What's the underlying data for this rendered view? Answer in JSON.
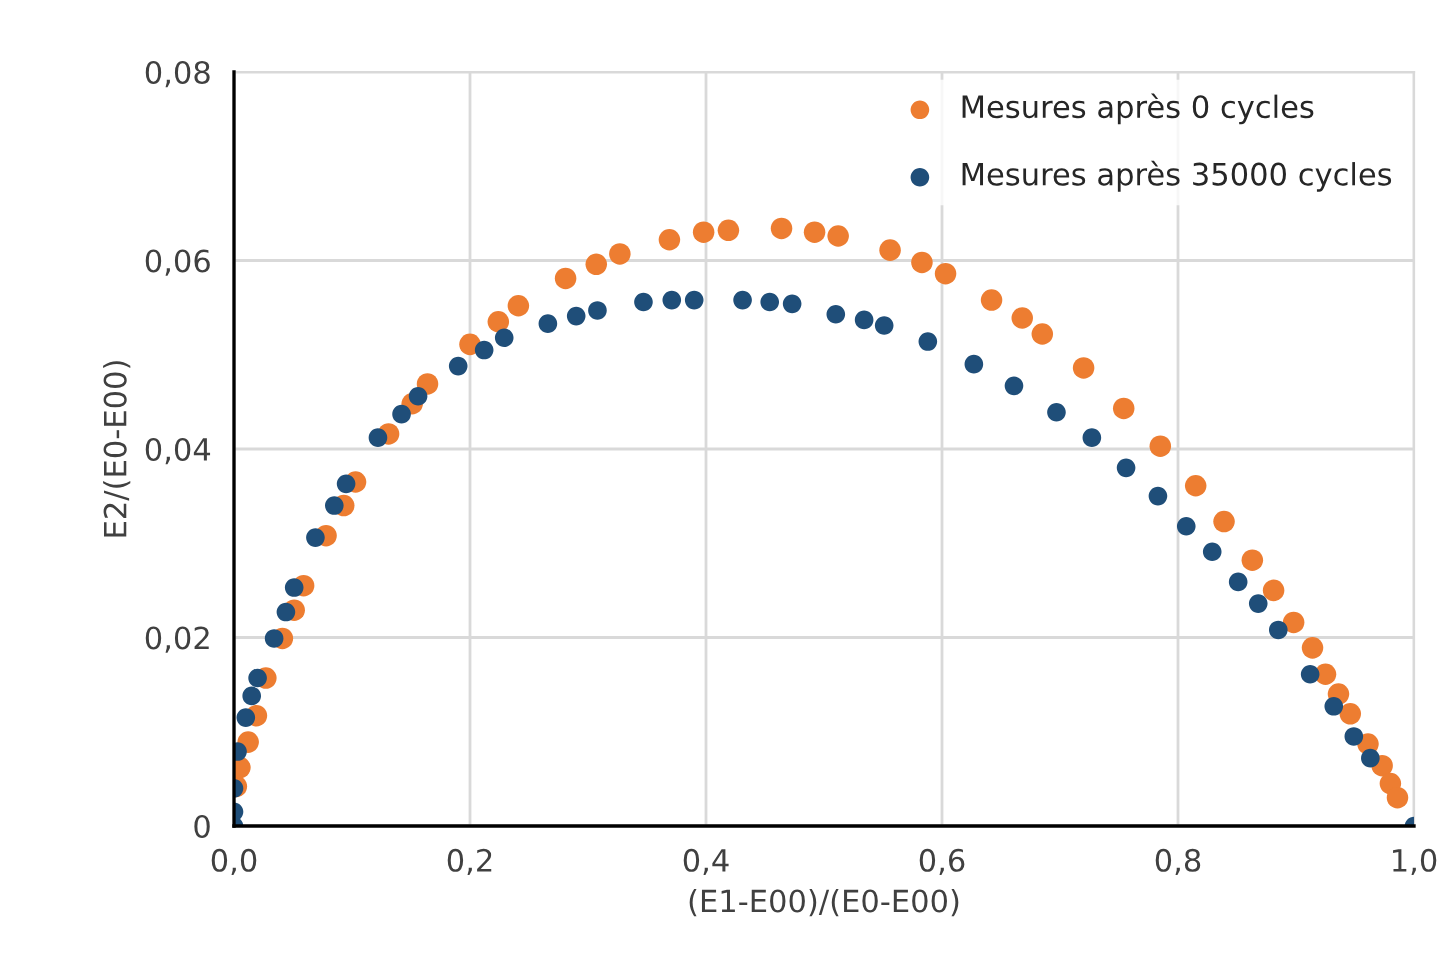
{
  "chart_data": {
    "type": "scatter",
    "xlabel": "(E1-E00)/(E0-E00)",
    "ylabel": "E2/(E0-E00)",
    "xlim": [
      0,
      1.0
    ],
    "ylim": [
      0,
      0.08
    ],
    "xticks": [
      {
        "value": 0,
        "label": "0,0"
      },
      {
        "value": 0.2,
        "label": "0,2"
      },
      {
        "value": 0.4,
        "label": "0,4"
      },
      {
        "value": 0.6,
        "label": "0,6"
      },
      {
        "value": 0.8,
        "label": "0,8"
      },
      {
        "value": 1.0,
        "label": "1,0"
      }
    ],
    "yticks": [
      0,
      {
        "value": 0.02,
        "label": "0,02"
      },
      {
        "value": 0.04,
        "label": "0,04"
      },
      {
        "value": 0.06,
        "label": "0,06"
      },
      {
        "value": 0.08,
        "label": "0,08"
      }
    ],
    "grid": true,
    "legend": "top right",
    "marker": "circle",
    "series": [
      {
        "name": "Mesures après 0 cycles",
        "color": "#ed7d31",
        "x": [
          0.002,
          0.005,
          0.012,
          0.019,
          0.027,
          0.041,
          0.051,
          0.059,
          0.078,
          0.093,
          0.103,
          0.131,
          0.151,
          0.164,
          0.2,
          0.224,
          0.241,
          0.281,
          0.307,
          0.327,
          0.369,
          0.398,
          0.419,
          0.464,
          0.492,
          0.512,
          0.556,
          0.583,
          0.603,
          0.642,
          0.668,
          0.685,
          0.72,
          0.754,
          0.785,
          0.815,
          0.839,
          0.863,
          0.881,
          0.898,
          0.914,
          0.925,
          0.936,
          0.946,
          0.961,
          0.973,
          0.98,
          0.986
        ],
        "values": [
          0.0042,
          0.0062,
          0.0089,
          0.0117,
          0.0157,
          0.0199,
          0.0229,
          0.0255,
          0.0308,
          0.034,
          0.0365,
          0.0416,
          0.0448,
          0.0469,
          0.0511,
          0.0535,
          0.0552,
          0.0581,
          0.0596,
          0.0607,
          0.0622,
          0.063,
          0.0632,
          0.0634,
          0.063,
          0.0626,
          0.0611,
          0.0598,
          0.0586,
          0.0558,
          0.0539,
          0.0522,
          0.0486,
          0.0443,
          0.0403,
          0.0361,
          0.0323,
          0.0282,
          0.025,
          0.0216,
          0.0189,
          0.0161,
          0.014,
          0.0119,
          0.0087,
          0.0064,
          0.0045,
          0.003
        ]
      },
      {
        "name": "Mesures après 35000 cycles",
        "color": "#1f4e79",
        "x": [
          0,
          0,
          0,
          0.003,
          0.01,
          0.015,
          0.02,
          0.034,
          0.044,
          0.051,
          0.069,
          0.085,
          0.095,
          0.122,
          0.142,
          0.156,
          0.19,
          0.212,
          0.229,
          0.266,
          0.29,
          0.308,
          0.347,
          0.371,
          0.39,
          0.431,
          0.454,
          0.473,
          0.51,
          0.534,
          0.551,
          0.588,
          0.627,
          0.661,
          0.697,
          0.727,
          0.756,
          0.783,
          0.807,
          0.829,
          0.851,
          0.868,
          0.885,
          0.912,
          0.932,
          0.949,
          0.963,
          1.0
        ],
        "values": [
          0,
          0.0015,
          0.004,
          0.0079,
          0.0115,
          0.0138,
          0.0157,
          0.0199,
          0.0227,
          0.0253,
          0.0306,
          0.034,
          0.0363,
          0.0412,
          0.0437,
          0.0456,
          0.0488,
          0.0505,
          0.0518,
          0.0533,
          0.0541,
          0.0547,
          0.0556,
          0.0558,
          0.0558,
          0.0558,
          0.0556,
          0.0554,
          0.0543,
          0.0537,
          0.0531,
          0.0514,
          0.049,
          0.0467,
          0.0439,
          0.0412,
          0.038,
          0.035,
          0.0318,
          0.0291,
          0.0259,
          0.0236,
          0.0208,
          0.0161,
          0.0127,
          0.0095,
          0.0072,
          0
        ]
      }
    ]
  }
}
